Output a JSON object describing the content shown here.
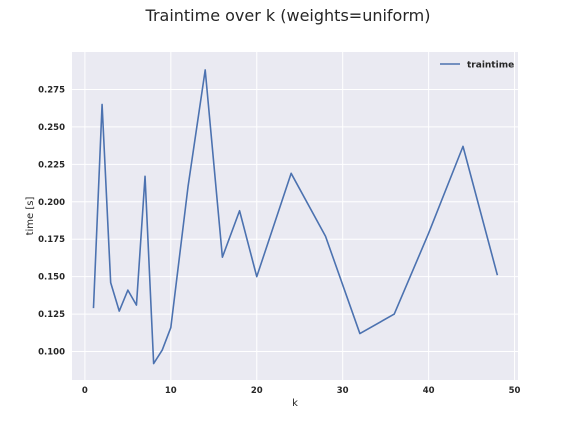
{
  "chart_data": {
    "type": "line",
    "title": "Traintime over k (weights=uniform)",
    "xlabel": "k",
    "ylabel": "time [s]",
    "xlim": [
      -1.5,
      50.4
    ],
    "ylim": [
      0.081,
      0.3
    ],
    "xticks": [
      0,
      10,
      20,
      30,
      40,
      50
    ],
    "yticks": [
      0.1,
      0.125,
      0.15,
      0.175,
      0.2,
      0.225,
      0.25,
      0.275
    ],
    "ytick_labels": [
      "0.100",
      "0.125",
      "0.150",
      "0.175",
      "0.200",
      "0.225",
      "0.250",
      "0.275"
    ],
    "grid": true,
    "legend_position": "top-right",
    "series": [
      {
        "name": "traintime",
        "color": "#4c72b0",
        "x": [
          1,
          2,
          3,
          4,
          5,
          6,
          7,
          8,
          9,
          10,
          12,
          14,
          16,
          18,
          20,
          24,
          28,
          32,
          36,
          40,
          44,
          48
        ],
        "y": [
          0.129,
          0.265,
          0.146,
          0.127,
          0.141,
          0.131,
          0.217,
          0.092,
          0.101,
          0.116,
          0.21,
          0.288,
          0.163,
          0.194,
          0.15,
          0.219,
          0.177,
          0.112,
          0.125,
          0.179,
          0.237,
          0.151
        ]
      }
    ],
    "style": {
      "plot_background": "#eaeaf2",
      "grid_color": "#ffffff"
    }
  }
}
